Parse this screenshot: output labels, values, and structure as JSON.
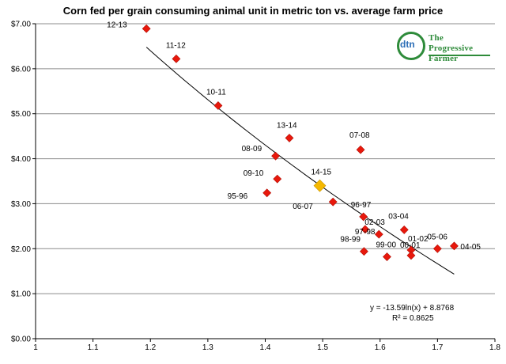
{
  "chart_data": {
    "type": "scatter",
    "title": "Corn fed per grain consuming animal unit in metric ton vs. average farm price",
    "xlabel": "",
    "ylabel": "",
    "xlim": [
      1,
      1.8
    ],
    "ylim": [
      0,
      7
    ],
    "x_ticks": [
      1,
      1.1,
      1.2,
      1.3,
      1.4,
      1.5,
      1.6,
      1.7,
      1.8
    ],
    "x_tick_labels": [
      "1",
      "1.1",
      "1.2",
      "1.3",
      "1.4",
      "1.5",
      "1.6",
      "1.7",
      "1.8"
    ],
    "y_ticks": [
      0,
      1,
      2,
      3,
      4,
      5,
      6,
      7
    ],
    "y_tick_labels": [
      "$0.00",
      "$1.00",
      "$2.00",
      "$3.00",
      "$4.00",
      "$5.00",
      "$6.00",
      "$7.00"
    ],
    "grid": "horizontal",
    "marker_color": "#e8180c",
    "highlight_color": "#f5b800",
    "points": [
      {
        "label": "12-13",
        "x": 1.193,
        "y": 6.89
      },
      {
        "label": "11-12",
        "x": 1.245,
        "y": 6.22
      },
      {
        "label": "10-11",
        "x": 1.318,
        "y": 5.18
      },
      {
        "label": "13-14",
        "x": 1.442,
        "y": 4.46
      },
      {
        "label": "07-08",
        "x": 1.566,
        "y": 4.2
      },
      {
        "label": "08-09",
        "x": 1.418,
        "y": 4.06
      },
      {
        "label": "09-10",
        "x": 1.421,
        "y": 3.55
      },
      {
        "label": "14-15",
        "x": 1.495,
        "y": 3.4,
        "highlight": true
      },
      {
        "label": "95-96",
        "x": 1.403,
        "y": 3.24
      },
      {
        "label": "06-07",
        "x": 1.518,
        "y": 3.04
      },
      {
        "label": "96-97",
        "x": 1.571,
        "y": 2.71
      },
      {
        "label": "97-98",
        "x": 1.574,
        "y": 2.43
      },
      {
        "label": "03-04",
        "x": 1.642,
        "y": 2.42
      },
      {
        "label": "02-03",
        "x": 1.598,
        "y": 2.32
      },
      {
        "label": "01-02",
        "x": 1.654,
        "y": 1.97
      },
      {
        "label": "04-05",
        "x": 1.729,
        "y": 2.06
      },
      {
        "label": "05-06",
        "x": 1.7,
        "y": 2.0
      },
      {
        "label": "98-99",
        "x": 1.572,
        "y": 1.94
      },
      {
        "label": "00-01",
        "x": 1.654,
        "y": 1.85
      },
      {
        "label": "99-00",
        "x": 1.612,
        "y": 1.82
      }
    ],
    "trendline": {
      "equation": "y = -13.59ln(x) + 8.8768",
      "r2": "R² = 0.8625",
      "a": -13.59,
      "b": 8.8768,
      "x_range": [
        1.193,
        1.729
      ]
    }
  },
  "logo": {
    "brand": "dtn",
    "text": "The Progressive Farmer",
    "accent": "#2e8b3a"
  }
}
